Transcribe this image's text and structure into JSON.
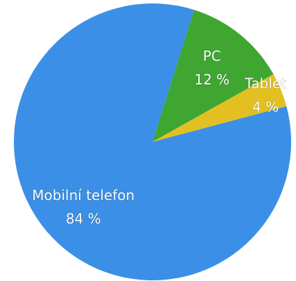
{
  "chart_data": {
    "type": "pie",
    "categories": [
      "PC",
      "Tablet",
      "Mobilní telefon"
    ],
    "values": [
      12,
      4,
      84
    ],
    "value_labels": [
      "12 %",
      "4 %",
      "84 %"
    ],
    "colors": [
      "#3fa632",
      "#e3c021",
      "#3b8fe6"
    ]
  }
}
